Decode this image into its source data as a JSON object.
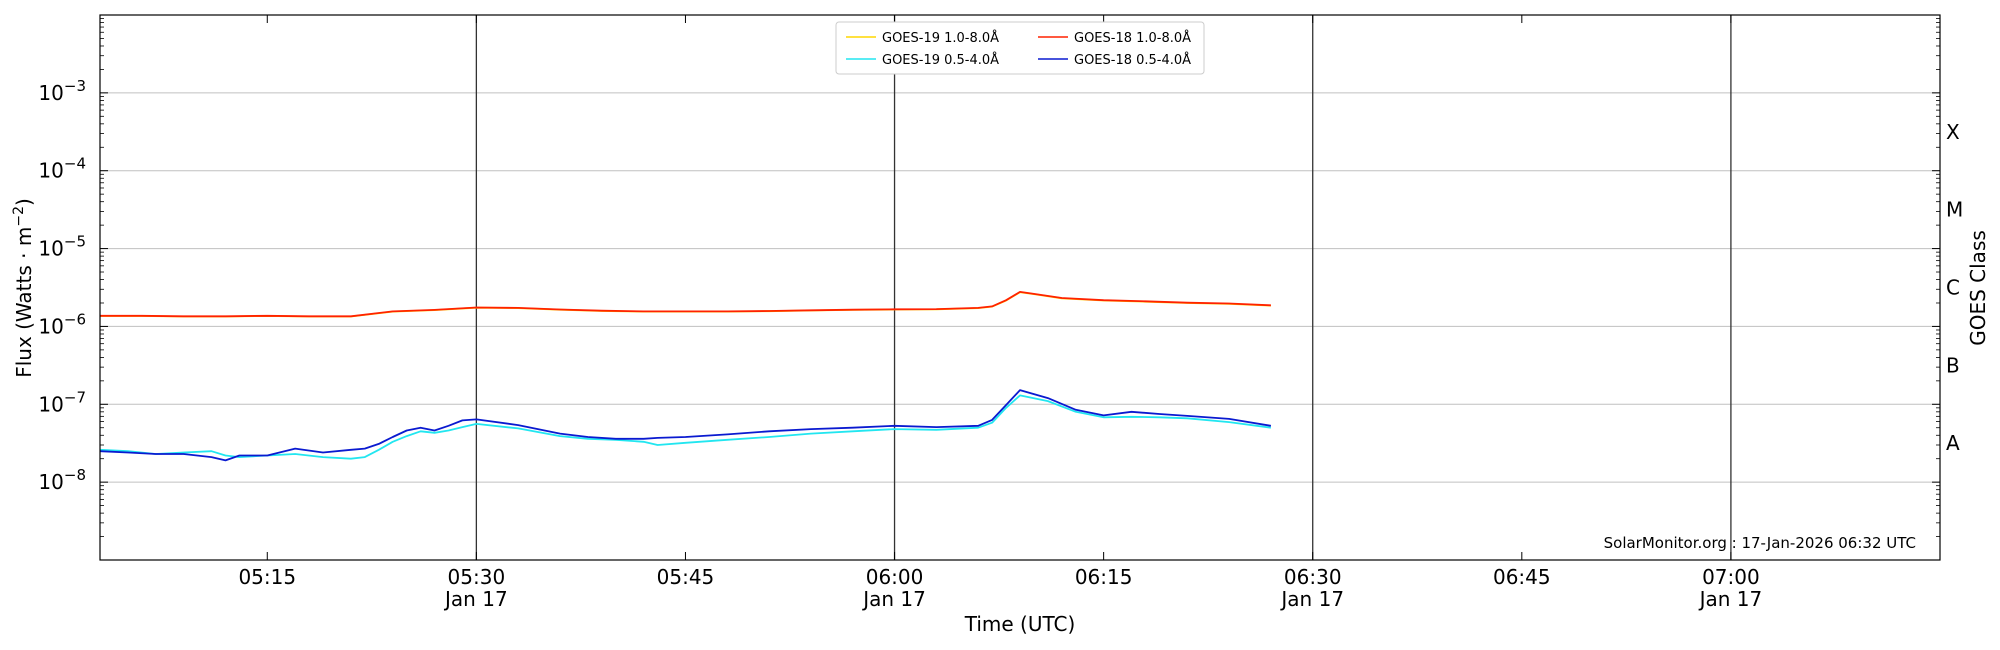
{
  "chart_data": {
    "type": "line",
    "xlabel": "Time (UTC)",
    "ylabel_main": "Flux (Watts · m",
    "ylabel_sup": "−2",
    "ylabel_close": ")",
    "ylabel_right": "GOES Class",
    "y_scale": "log",
    "ylim": [
      1e-09,
      0.01
    ],
    "xlim": [
      "2026-01-17 05:03",
      "2026-01-17 07:15"
    ],
    "grid": "horizontal at decades 1e-8 to 1e-3",
    "legend_position": "top-center",
    "credit": "SolarMonitor.org : 17-Jan-2026 06:32 UTC",
    "y_ticks": [
      {
        "value": 1e-08,
        "base": "10",
        "exp": "−8"
      },
      {
        "value": 1e-07,
        "base": "10",
        "exp": "−7"
      },
      {
        "value": 1e-06,
        "base": "10",
        "exp": "−6"
      },
      {
        "value": 1e-05,
        "base": "10",
        "exp": "−5"
      },
      {
        "value": 0.0001,
        "base": "10",
        "exp": "−4"
      },
      {
        "value": 0.001,
        "base": "10",
        "exp": "−3"
      }
    ],
    "goes_classes": [
      {
        "label": "A",
        "low": 1e-08
      },
      {
        "label": "B",
        "low": 1e-07
      },
      {
        "label": "C",
        "low": 1e-06
      },
      {
        "label": "M",
        "low": 1e-05
      },
      {
        "label": "X",
        "low": 0.0001
      }
    ],
    "x_ticks": [
      {
        "time": "05:15",
        "date": ""
      },
      {
        "time": "05:30",
        "date": "Jan 17"
      },
      {
        "time": "05:45",
        "date": ""
      },
      {
        "time": "06:00",
        "date": "Jan 17"
      },
      {
        "time": "06:15",
        "date": ""
      },
      {
        "time": "06:30",
        "date": "Jan 17"
      },
      {
        "time": "06:45",
        "date": ""
      },
      {
        "time": "07:00",
        "date": "Jan 17"
      }
    ],
    "vertical_lines": [
      "05:30",
      "06:00",
      "06:30",
      "07:00"
    ],
    "series": [
      {
        "name": "GOES-19 1.0-8.0Å",
        "color": "#ffd700",
        "x": [
          "05:03",
          "05:06",
          "05:09",
          "05:12",
          "05:15",
          "05:18",
          "05:21",
          "05:24",
          "05:27",
          "05:30",
          "05:33",
          "05:36",
          "05:39",
          "05:42",
          "05:45",
          "05:48",
          "05:51",
          "05:54",
          "05:57",
          "06:00",
          "06:03",
          "06:06",
          "06:07",
          "06:08",
          "06:09",
          "06:10",
          "06:12",
          "06:15",
          "06:18",
          "06:21",
          "06:24",
          "06:27"
        ],
        "values": [
          1.36e-06,
          1.36e-06,
          1.34e-06,
          1.34e-06,
          1.36e-06,
          1.34e-06,
          1.34e-06,
          1.55e-06,
          1.62e-06,
          1.74e-06,
          1.72e-06,
          1.64e-06,
          1.58e-06,
          1.55e-06,
          1.55e-06,
          1.55e-06,
          1.57e-06,
          1.6e-06,
          1.63e-06,
          1.65e-06,
          1.66e-06,
          1.72e-06,
          1.8e-06,
          2.15e-06,
          2.75e-06,
          2.6e-06,
          2.3e-06,
          2.15e-06,
          2.08e-06,
          2e-06,
          1.95e-06,
          1.85e-06
        ]
      },
      {
        "name": "GOES-18 1.0-8.0Å",
        "color": "#ff2200",
        "x": [
          "05:03",
          "05:06",
          "05:09",
          "05:12",
          "05:15",
          "05:18",
          "05:21",
          "05:24",
          "05:27",
          "05:30",
          "05:33",
          "05:36",
          "05:39",
          "05:42",
          "05:45",
          "05:48",
          "05:51",
          "05:54",
          "05:57",
          "06:00",
          "06:03",
          "06:06",
          "06:07",
          "06:08",
          "06:09",
          "06:10",
          "06:12",
          "06:15",
          "06:18",
          "06:21",
          "06:24",
          "06:27"
        ],
        "values": [
          1.37e-06,
          1.37e-06,
          1.35e-06,
          1.35e-06,
          1.37e-06,
          1.35e-06,
          1.35e-06,
          1.56e-06,
          1.63e-06,
          1.75e-06,
          1.73e-06,
          1.65e-06,
          1.59e-06,
          1.56e-06,
          1.56e-06,
          1.56e-06,
          1.58e-06,
          1.61e-06,
          1.64e-06,
          1.66e-06,
          1.67e-06,
          1.73e-06,
          1.81e-06,
          2.17e-06,
          2.78e-06,
          2.62e-06,
          2.32e-06,
          2.17e-06,
          2.1e-06,
          2.02e-06,
          1.97e-06,
          1.87e-06
        ]
      },
      {
        "name": "GOES-19 0.5-4.0Å",
        "color": "#22e6f0",
        "x": [
          "05:03",
          "05:05",
          "05:07",
          "05:09",
          "05:11",
          "05:12",
          "05:13",
          "05:15",
          "05:17",
          "05:19",
          "05:21",
          "05:22",
          "05:23",
          "05:24",
          "05:25",
          "05:26",
          "05:27",
          "05:28",
          "05:29",
          "05:30",
          "05:33",
          "05:36",
          "05:38",
          "05:40",
          "05:42",
          "05:43",
          "05:45",
          "05:48",
          "05:51",
          "05:54",
          "05:57",
          "06:00",
          "06:03",
          "06:06",
          "06:07",
          "06:08",
          "06:09",
          "06:11",
          "06:13",
          "06:15",
          "06:17",
          "06:19",
          "06:21",
          "06:24",
          "06:27"
        ],
        "values": [
          2.6e-08,
          2.5e-08,
          2.3e-08,
          2.4e-08,
          2.5e-08,
          2.2e-08,
          2.1e-08,
          2.2e-08,
          2.3e-08,
          2.1e-08,
          2e-08,
          2.1e-08,
          2.6e-08,
          3.3e-08,
          3.9e-08,
          4.5e-08,
          4.3e-08,
          4.6e-08,
          5.1e-08,
          5.6e-08,
          4.9e-08,
          3.9e-08,
          3.6e-08,
          3.5e-08,
          3.3e-08,
          3e-08,
          3.2e-08,
          3.5e-08,
          3.8e-08,
          4.2e-08,
          4.5e-08,
          4.8e-08,
          4.7e-08,
          5e-08,
          5.8e-08,
          9e-08,
          1.3e-07,
          1.1e-07,
          8e-08,
          6.8e-08,
          6.9e-08,
          6.8e-08,
          6.6e-08,
          5.9e-08,
          5e-08
        ]
      },
      {
        "name": "GOES-18 0.5-4.0Å",
        "color": "#0a1ad0",
        "x": [
          "05:03",
          "05:05",
          "05:07",
          "05:09",
          "05:11",
          "05:12",
          "05:13",
          "05:15",
          "05:17",
          "05:19",
          "05:21",
          "05:22",
          "05:23",
          "05:24",
          "05:25",
          "05:26",
          "05:27",
          "05:28",
          "05:29",
          "05:30",
          "05:33",
          "05:36",
          "05:38",
          "05:40",
          "05:42",
          "05:43",
          "05:45",
          "05:48",
          "05:51",
          "05:54",
          "05:57",
          "06:00",
          "06:03",
          "06:06",
          "06:07",
          "06:08",
          "06:09",
          "06:11",
          "06:13",
          "06:15",
          "06:17",
          "06:19",
          "06:21",
          "06:24",
          "06:27"
        ],
        "values": [
          2.5e-08,
          2.4e-08,
          2.3e-08,
          2.3e-08,
          2.1e-08,
          1.9e-08,
          2.2e-08,
          2.2e-08,
          2.7e-08,
          2.4e-08,
          2.6e-08,
          2.7e-08,
          3.1e-08,
          3.8e-08,
          4.6e-08,
          5e-08,
          4.6e-08,
          5.3e-08,
          6.2e-08,
          6.4e-08,
          5.4e-08,
          4.2e-08,
          3.8e-08,
          3.6e-08,
          3.6e-08,
          3.7e-08,
          3.8e-08,
          4.1e-08,
          4.5e-08,
          4.8e-08,
          5e-08,
          5.3e-08,
          5.1e-08,
          5.3e-08,
          6.3e-08,
          9.8e-08,
          1.52e-07,
          1.2e-07,
          8.5e-08,
          7.2e-08,
          8e-08,
          7.5e-08,
          7.1e-08,
          6.5e-08,
          5.3e-08
        ]
      }
    ]
  }
}
